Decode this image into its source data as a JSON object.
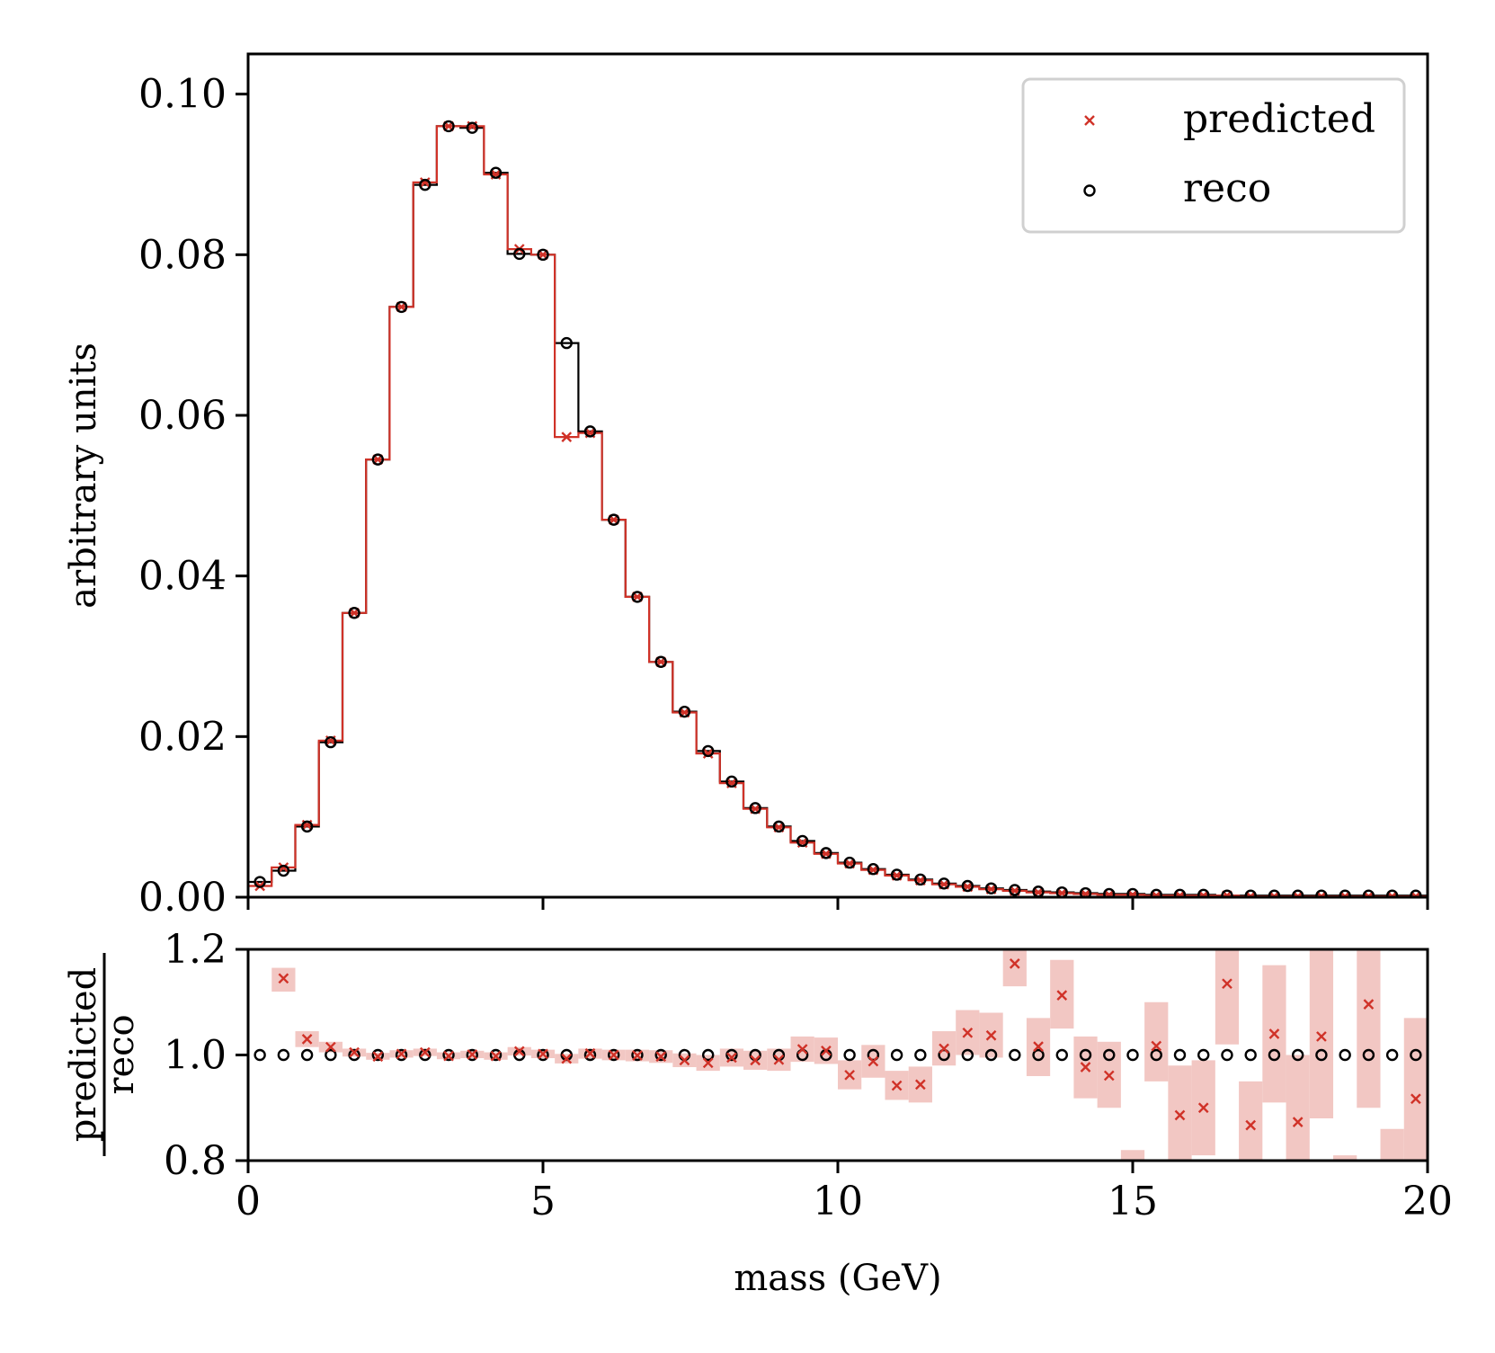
{
  "colors": {
    "predicted": "#d03228",
    "reco": "#000000",
    "band": "#f2c7c3"
  },
  "main_panel": {
    "ylabel": "arbitrary units",
    "yticks": [
      "0.00",
      "0.02",
      "0.04",
      "0.06",
      "0.08",
      "0.10"
    ],
    "legend": {
      "predicted": "predicted",
      "reco": "reco"
    }
  },
  "ratio_panel": {
    "ylabel_numerator": "predicted",
    "ylabel_denominator": "reco",
    "yticks": [
      "0.8",
      "1.0",
      "1.2"
    ]
  },
  "xaxis": {
    "label": "mass (GeV)",
    "ticks": [
      "0",
      "5",
      "10",
      "15",
      "20"
    ]
  },
  "chart_data": [
    {
      "type": "line",
      "panel": "main",
      "x_edges": [
        0,
        0.4,
        0.8,
        1.2,
        1.6,
        2.0,
        2.4,
        2.8,
        3.2,
        3.6,
        4.0,
        4.4,
        4.8,
        5.2,
        5.6,
        6.0,
        6.4,
        6.8,
        7.2,
        7.6,
        8.0,
        8.4,
        8.8,
        9.2,
        9.6,
        10.0,
        10.4,
        10.8,
        11.2,
        11.6,
        12.0,
        12.4,
        12.8,
        13.2,
        13.6,
        14.0,
        14.4,
        14.8,
        15.2,
        15.6,
        16.0,
        16.4,
        16.8,
        17.2,
        17.6,
        18.0,
        18.4,
        18.8,
        19.2,
        19.6,
        20.0
      ],
      "x_centers": [
        0.2,
        0.6,
        1.0,
        1.4,
        1.8,
        2.2,
        2.6,
        3.0,
        3.4,
        3.8,
        4.2,
        4.6,
        5.0,
        5.4,
        5.8,
        6.2,
        6.6,
        7.0,
        7.4,
        7.8,
        8.2,
        8.6,
        9.0,
        9.4,
        9.8,
        10.2,
        10.6,
        11.0,
        11.4,
        11.8,
        12.2,
        12.6,
        13.0,
        13.4,
        13.8,
        14.2,
        14.6,
        15.0,
        15.4,
        15.8,
        16.2,
        16.6,
        17.0,
        17.4,
        17.8,
        18.2,
        18.6,
        19.0,
        19.4,
        19.8
      ],
      "xlim": [
        0,
        20
      ],
      "ylim": [
        0,
        0.105
      ],
      "series": [
        {
          "name": "predicted",
          "values": [
            0.0014,
            0.0037,
            0.009,
            0.0195,
            0.0354,
            0.0545,
            0.0735,
            0.089,
            0.096,
            0.096,
            0.09,
            0.0807,
            0.08,
            0.0573,
            0.0578,
            0.047,
            0.0374,
            0.0293,
            0.023,
            0.0179,
            0.0142,
            0.011,
            0.0087,
            0.0068,
            0.0054,
            0.0042,
            0.0034,
            0.0027,
            0.0021,
            0.0016,
            0.0013,
            0.001,
            0.0008,
            0.0006,
            0.0005,
            0.0004,
            0.0003,
            0.0003,
            0.0002,
            0.0002,
            0.0002,
            0.0002,
            0.0001,
            0.0001,
            0.0001,
            0.0001,
            0.0001,
            0.0001,
            0.0001,
            0.0001
          ]
        },
        {
          "name": "reco",
          "values": [
            0.0019,
            0.0033,
            0.0088,
            0.0193,
            0.0354,
            0.0545,
            0.0735,
            0.0887,
            0.096,
            0.0958,
            0.0902,
            0.0801,
            0.08,
            0.069,
            0.058,
            0.047,
            0.0374,
            0.0293,
            0.0231,
            0.0182,
            0.0144,
            0.0111,
            0.0088,
            0.007,
            0.0055,
            0.0043,
            0.0035,
            0.0028,
            0.0022,
            0.0017,
            0.0014,
            0.0011,
            0.0009,
            0.0007,
            0.0006,
            0.0005,
            0.0004,
            0.0004,
            0.0003,
            0.0003,
            0.0003,
            0.0002,
            0.0002,
            0.0002,
            0.0002,
            0.0002,
            0.0002,
            0.0002,
            0.0002,
            0.0002
          ]
        }
      ]
    },
    {
      "type": "scatter",
      "panel": "ratio",
      "x_centers": [
        0.2,
        0.6,
        1.0,
        1.4,
        1.8,
        2.2,
        2.6,
        3.0,
        3.4,
        3.8,
        4.2,
        4.6,
        5.0,
        5.4,
        5.8,
        6.2,
        6.6,
        7.0,
        7.4,
        7.8,
        8.2,
        8.6,
        9.0,
        9.4,
        9.8,
        10.2,
        10.6,
        11.0,
        11.4,
        11.8,
        12.2,
        12.6,
        13.0,
        13.4,
        13.8,
        14.2,
        14.6,
        15.0,
        15.4,
        15.8,
        16.2,
        16.6,
        17.0,
        17.4,
        17.8,
        18.2,
        18.6,
        19.0,
        19.4,
        19.8
      ],
      "xlim": [
        0,
        20
      ],
      "ylim": [
        0.8,
        1.2
      ],
      "series": [
        {
          "name": "predicted",
          "values": [
            null,
            1.145,
            1.03,
            1.015,
            1.005,
            0.997,
            1.002,
            1.005,
            0.998,
            1.001,
            0.998,
            1.007,
            1.002,
            0.993,
            1.003,
            1.0,
            0.999,
            0.997,
            0.99,
            0.985,
            0.995,
            0.99,
            0.991,
            1.011,
            1.008,
            0.962,
            0.988,
            0.942,
            0.944,
            1.012,
            1.042,
            1.037,
            1.173,
            1.016,
            1.113,
            0.977,
            0.961,
            null,
            1.017,
            0.886,
            0.9,
            1.135,
            0.867,
            1.04,
            0.873,
            1.035,
            null,
            1.096,
            null,
            0.917
          ],
          "band_low": [
            null,
            1.12,
            1.015,
            1.005,
            0.997,
            0.991,
            0.995,
            0.998,
            0.992,
            0.994,
            0.991,
            0.999,
            0.994,
            0.984,
            0.993,
            0.99,
            0.988,
            0.985,
            0.977,
            0.97,
            0.978,
            0.972,
            0.97,
            0.987,
            0.983,
            0.935,
            0.957,
            0.915,
            0.91,
            0.98,
            1.0,
            0.995,
            1.13,
            0.96,
            1.05,
            0.918,
            0.9,
            0.75,
            0.95,
            0.75,
            0.81,
            1.02,
            0.75,
            0.91,
            0.75,
            0.88,
            0.75,
            0.9,
            0.75,
            0.75
          ],
          "band_high": [
            null,
            1.165,
            1.045,
            1.025,
            1.012,
            1.004,
            1.009,
            1.012,
            1.005,
            1.008,
            1.005,
            1.015,
            1.01,
            1.002,
            1.012,
            1.01,
            1.01,
            1.009,
            1.003,
            1.0,
            1.012,
            1.008,
            1.012,
            1.035,
            1.033,
            0.99,
            1.019,
            0.97,
            0.978,
            1.045,
            1.085,
            1.08,
            1.21,
            1.07,
            1.18,
            1.035,
            1.025,
            0.82,
            1.1,
            0.98,
            0.99,
            1.25,
            0.95,
            1.17,
            1.0,
            1.2,
            0.81,
            1.25,
            0.86,
            1.07
          ]
        },
        {
          "name": "reco",
          "values": [
            1.0,
            1.0,
            1.0,
            1.0,
            1.0,
            1.0,
            1.0,
            1.0,
            1.0,
            1.0,
            1.0,
            1.0,
            1.0,
            1.0,
            1.0,
            1.0,
            1.0,
            1.0,
            1.0,
            1.0,
            1.0,
            1.0,
            1.0,
            1.0,
            1.0,
            1.0,
            1.0,
            1.0,
            1.0,
            1.0,
            1.0,
            1.0,
            1.0,
            1.0,
            1.0,
            1.0,
            1.0,
            1.0,
            1.0,
            1.0,
            1.0,
            1.0,
            1.0,
            1.0,
            1.0,
            1.0,
            1.0,
            1.0,
            1.0,
            1.0
          ]
        }
      ]
    }
  ]
}
